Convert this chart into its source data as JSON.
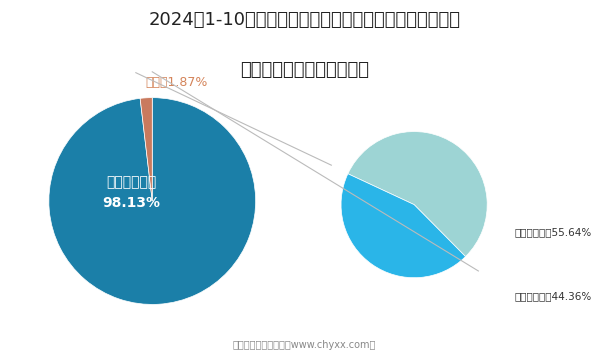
{
  "title": "2024年1-10月天津市進出口總額占全國比重及外商投資企\n業占進出口總額比重統計圖",
  "title_line1": "2024年1-10月天津市進出口總額占全國比重及外商投資企",
  "title_line2": "業占進出口總額比重統計圖",
  "pie1_labels": [
    "全國其他省份",
    "天津市"
  ],
  "pie1_values": [
    98.13,
    1.87
  ],
  "pie1_colors": [
    "#1b7fa8",
    "#c97a5e"
  ],
  "pie1_pct": [
    "98.13%",
    "1.87%"
  ],
  "pie2_labels": [
    "其他企業類型",
    "外商投資企業"
  ],
  "pie2_values": [
    55.64,
    44.36
  ],
  "pie2_colors": [
    "#9dd4d4",
    "#2ab5e8"
  ],
  "pie2_pct": [
    "55.64%",
    "44.36%"
  ],
  "tianjin_label_color": "#d4845a",
  "footer": "制圖：智研咨詢整理（www.chyxx.com）",
  "bg_color": "#ffffff",
  "title_fontsize": 13,
  "label_fontsize": 9,
  "connect_color": "#bbbbbb"
}
